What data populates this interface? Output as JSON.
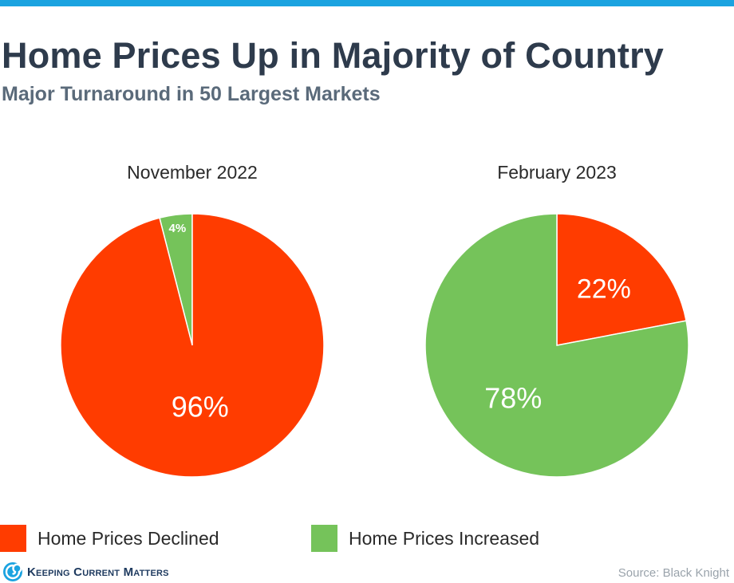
{
  "colors": {
    "accent_bar": "#1ba3e0",
    "declined": "#ff3c00",
    "increased": "#75c35a"
  },
  "header": {
    "title": "Home Prices Up in Majority of Country",
    "subtitle": "Major Turnaround in 50 Largest Markets"
  },
  "chart_data": [
    {
      "type": "pie",
      "title": "November 2022",
      "slices": [
        {
          "label": "Home Prices Declined",
          "value": 96,
          "display": "96%"
        },
        {
          "label": "Home Prices Increased",
          "value": 4,
          "display": "4%"
        }
      ]
    },
    {
      "type": "pie",
      "title": "February 2023",
      "slices": [
        {
          "label": "Home Prices Declined",
          "value": 22,
          "display": "22%"
        },
        {
          "label": "Home Prices Increased",
          "value": 78,
          "display": "78%"
        }
      ]
    }
  ],
  "legend": {
    "placement": "bottom",
    "items": [
      {
        "label": "Home Prices Declined"
      },
      {
        "label": "Home Prices Increased"
      }
    ]
  },
  "footer": {
    "logo_text": "Keeping Current Matters",
    "logo_icon": "kcm-swirl-icon",
    "source": "Source: Black Knight"
  }
}
